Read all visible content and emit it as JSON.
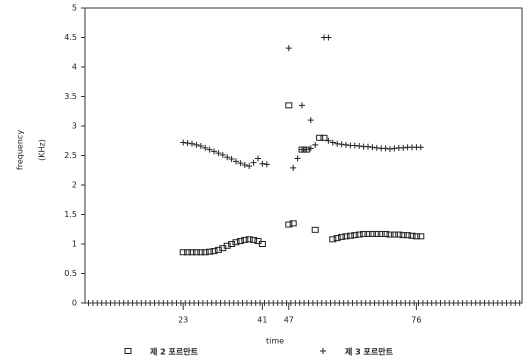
{
  "chart_data": {
    "type": "scatter",
    "xlabel": "time",
    "ylabel": [
      "frequency",
      "(KHz)"
    ],
    "xlim": [
      0,
      100
    ],
    "xticks": [
      23,
      41,
      47,
      76
    ],
    "ylim": [
      0,
      5
    ],
    "yticks": [
      0,
      0.5,
      1,
      1.5,
      2,
      2.5,
      3,
      3.5,
      4,
      4.5,
      5
    ],
    "series": [
      {
        "name": "제 2 포르만트",
        "marker": "square",
        "color": "#222",
        "x": [
          23,
          24,
          25,
          26,
          27,
          28,
          29,
          30,
          31,
          32,
          33,
          34,
          35,
          36,
          37,
          38,
          39,
          40,
          41,
          47,
          47,
          48,
          50,
          51,
          54,
          55,
          53,
          57,
          58,
          59,
          60,
          61,
          62,
          63,
          64,
          65,
          66,
          67,
          68,
          69,
          70,
          71,
          72,
          73,
          74,
          75,
          76,
          77
        ],
        "values": [
          0.86,
          0.86,
          0.86,
          0.86,
          0.86,
          0.86,
          0.87,
          0.88,
          0.9,
          0.93,
          0.97,
          1.0,
          1.03,
          1.05,
          1.07,
          1.08,
          1.07,
          1.05,
          1.0,
          3.35,
          1.33,
          1.35,
          2.6,
          2.6,
          2.8,
          2.8,
          1.24,
          1.08,
          1.1,
          1.12,
          1.13,
          1.14,
          1.15,
          1.16,
          1.17,
          1.17,
          1.17,
          1.17,
          1.17,
          1.17,
          1.16,
          1.16,
          1.16,
          1.15,
          1.15,
          1.14,
          1.13,
          1.13
        ]
      },
      {
        "name": "제 3 포르만트",
        "marker": "plus",
        "color": "#222",
        "x": [
          23,
          24,
          25,
          26,
          27,
          28,
          29,
          30,
          31,
          32,
          33,
          34,
          35,
          36,
          37,
          38,
          39,
          40,
          41,
          42,
          47,
          48,
          49,
          50,
          50,
          51,
          52,
          52,
          53,
          55,
          56,
          56,
          57,
          58,
          59,
          60,
          61,
          62,
          63,
          64,
          65,
          66,
          67,
          68,
          69,
          70,
          71,
          72,
          73,
          74,
          75,
          76,
          77
        ],
        "values": [
          2.72,
          2.71,
          2.7,
          2.68,
          2.66,
          2.63,
          2.6,
          2.57,
          2.54,
          2.51,
          2.47,
          2.44,
          2.4,
          2.37,
          2.34,
          2.32,
          2.38,
          2.45,
          2.36,
          2.35,
          4.32,
          2.29,
          2.45,
          2.6,
          3.35,
          2.6,
          3.1,
          2.62,
          2.68,
          4.5,
          4.5,
          2.75,
          2.72,
          2.7,
          2.69,
          2.68,
          2.67,
          2.67,
          2.66,
          2.65,
          2.65,
          2.64,
          2.63,
          2.62,
          2.62,
          2.61,
          2.62,
          2.63,
          2.63,
          2.64,
          2.64,
          2.64,
          2.64
        ]
      }
    ]
  }
}
